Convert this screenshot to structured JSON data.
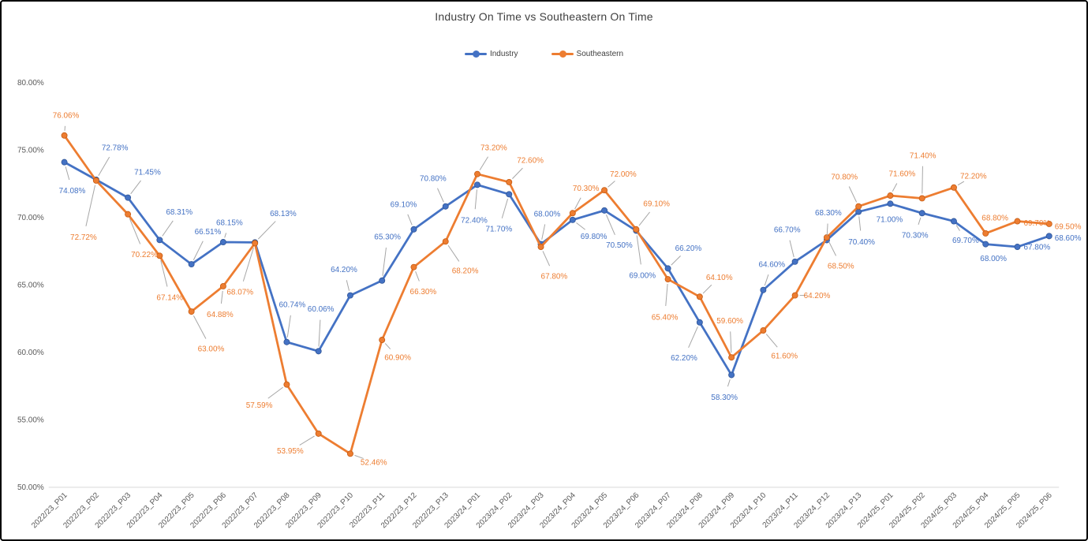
{
  "title": "Industry On Time vs Southeastern On Time",
  "chart_data": {
    "type": "line",
    "categories": [
      "2022/23_P01",
      "2022/23_P02",
      "2022/23_P03",
      "2022/23_P04",
      "2022/23_P05",
      "2022/23_P06",
      "2022/23_P07",
      "2022/23_P08",
      "2022/23_P09",
      "2022/23_P10",
      "2022/23_P11",
      "2022/23_P12",
      "2022/23_P13",
      "2023/24_P01",
      "2023/24_P02",
      "2023/24_P03",
      "2023/24_P04",
      "2023/24_P05",
      "2023/24_P06",
      "2023/24_P07",
      "2023/24_P08",
      "2023/24_P09",
      "2023/24_P10",
      "2023/24_P11",
      "2023/24_P12",
      "2023/24_P13",
      "2024/25_P01",
      "2024/25_P02",
      "2024/25_P03",
      "2024/25_P04",
      "2024/25_P05",
      "2024/25_P06"
    ],
    "series": [
      {
        "name": "Industry",
        "color": "#4472C4",
        "values": [
          74.08,
          72.78,
          71.45,
          68.31,
          66.51,
          68.15,
          68.13,
          60.74,
          60.06,
          64.2,
          65.3,
          69.1,
          70.8,
          72.4,
          71.7,
          68.0,
          69.8,
          70.5,
          69.0,
          66.2,
          62.2,
          58.3,
          64.6,
          66.7,
          68.3,
          70.4,
          71.0,
          70.3,
          69.7,
          68.0,
          67.8,
          68.6
        ],
        "labels": [
          "74.08%",
          "72.78%",
          "71.45%",
          "68.31%",
          "66.51%",
          "68.15%",
          "68.13%",
          "60.74%",
          "60.06%",
          "64.20%",
          "65.30%",
          "69.10%",
          "70.80%",
          "72.40%",
          "71.70%",
          "68.00%",
          "69.80%",
          "70.50%",
          "69.00%",
          "66.20%",
          "62.20%",
          "58.30%",
          "64.60%",
          "66.70%",
          "68.30%",
          "70.40%",
          "71.00%",
          "70.30%",
          "69.70%",
          "68.00%",
          "67.80%",
          "68.60%"
        ]
      },
      {
        "name": "Southeastern",
        "color": "#ED7D31",
        "values": [
          76.06,
          72.72,
          70.22,
          67.14,
          63.0,
          64.88,
          68.07,
          57.59,
          53.95,
          52.46,
          60.9,
          66.3,
          68.2,
          73.2,
          72.6,
          67.8,
          70.3,
          72.0,
          69.1,
          65.4,
          64.1,
          59.6,
          61.6,
          64.2,
          68.5,
          70.8,
          71.6,
          71.4,
          72.2,
          68.8,
          69.7,
          69.5
        ],
        "labels": [
          "76.06%",
          "72.72%",
          "70.22%",
          "67.14%",
          "63.00%",
          "64.88%",
          "68.07%",
          "57.59%",
          "53.95%",
          "52.46%",
          "60.90%",
          "66.30%",
          "68.20%",
          "73.20%",
          "72.60%",
          "67.80%",
          "70.30%",
          "72.00%",
          "69.10%",
          "65.40%",
          "64.10%",
          "59.60%",
          "61.60%",
          "64.20%",
          "68.50%",
          "70.80%",
          "71.60%",
          "71.40%",
          "72.20%",
          "68.80%",
          "69.70%",
          "69.50%"
        ]
      }
    ],
    "title": "Industry On Time vs Southeastern On Time",
    "xlabel": "",
    "ylabel": "",
    "ylim": [
      50,
      80
    ],
    "ytick_values": [
      80,
      75,
      70,
      65,
      60,
      55,
      50
    ],
    "ytick_labels": [
      "80.00%",
      "75.00%",
      "70.00%",
      "65.00%",
      "60.00%",
      "55.00%",
      "50.00%"
    ],
    "grid": false,
    "legend_position": "top",
    "colors": {
      "axis_text": "#595959",
      "axis_line": "#D9D9D9",
      "title_text": "#404040",
      "leader_line": "#A6A6A6"
    }
  }
}
